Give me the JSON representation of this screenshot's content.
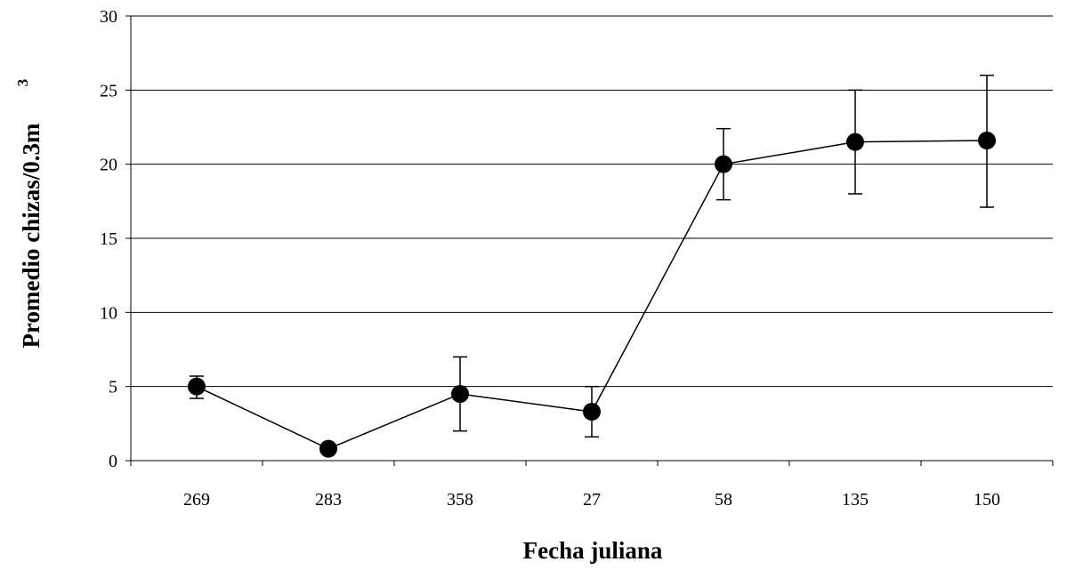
{
  "chart_data": {
    "type": "line",
    "title": "",
    "xlabel": "Fecha juliana",
    "ylabel": "Promedio chizas/0.3m",
    "ylabel_superscript": "3",
    "categories": [
      "269",
      "283",
      "358",
      "27",
      "58",
      "135",
      "150"
    ],
    "series": [
      {
        "values": [
          5.0,
          0.8,
          4.5,
          3.3,
          20.0,
          21.5,
          21.6
        ],
        "error_low": [
          4.2,
          0.8,
          2.0,
          1.6,
          17.6,
          18.0,
          17.1
        ],
        "error_high": [
          5.7,
          0.8,
          7.0,
          5.0,
          22.4,
          25.0,
          26.0
        ]
      }
    ],
    "ylim": [
      0,
      30
    ],
    "yticks": [
      0,
      5,
      10,
      15,
      20,
      25,
      30
    ],
    "grid": true,
    "legend": "none",
    "colors": {
      "line": "#000000",
      "marker": "#000000",
      "grid": "#000000"
    }
  }
}
